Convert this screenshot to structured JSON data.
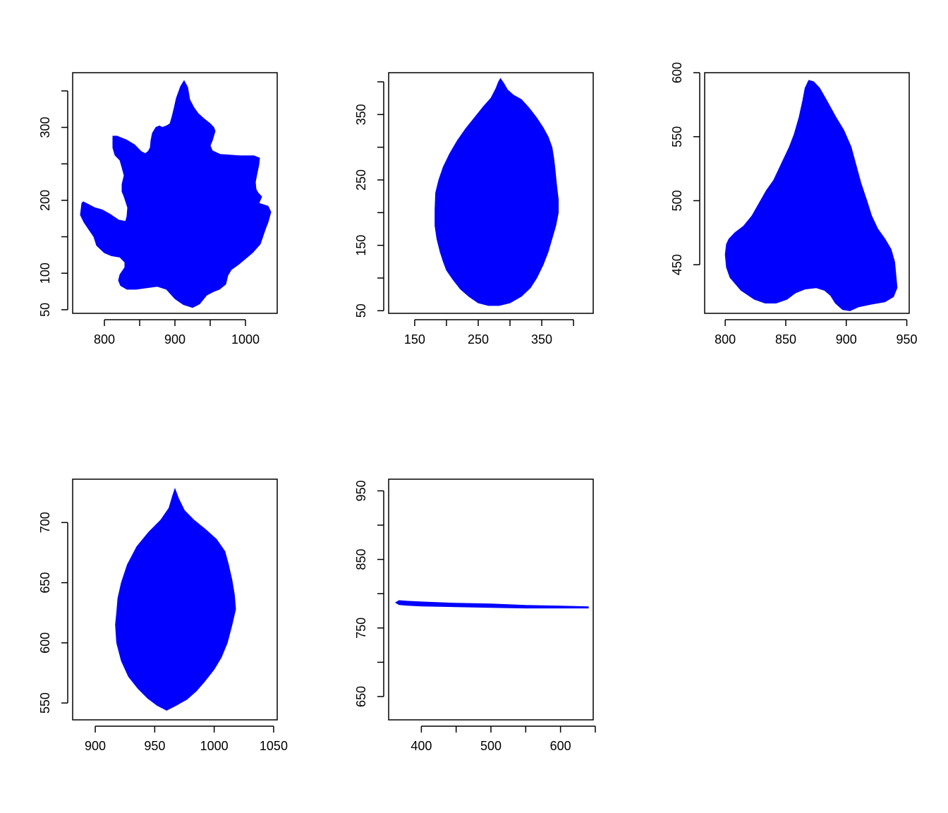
{
  "fill_color": "#0000FF",
  "chart_data": [
    {
      "type": "area",
      "shape": "polygon",
      "x_ticks": [
        800,
        900,
        1000
      ],
      "x_minor_ticks": [
        850,
        950
      ],
      "y_ticks": [
        50,
        100,
        200,
        300
      ],
      "y_minor_ticks": [
        150,
        250,
        350
      ],
      "xlim": [
        755,
        1045
      ],
      "ylim": [
        45,
        375
      ],
      "polygon": [
        [
          913,
          364
        ],
        [
          918,
          355
        ],
        [
          921,
          338
        ],
        [
          927,
          327
        ],
        [
          933,
          319
        ],
        [
          941,
          312
        ],
        [
          950,
          305
        ],
        [
          955,
          300
        ],
        [
          957,
          295
        ],
        [
          953,
          282
        ],
        [
          950,
          275
        ],
        [
          953,
          268
        ],
        [
          964,
          263
        ],
        [
          978,
          262
        ],
        [
          992,
          261
        ],
        [
          1012,
          261
        ],
        [
          1020,
          258
        ],
        [
          1019,
          249
        ],
        [
          1016,
          235
        ],
        [
          1014,
          225
        ],
        [
          1015,
          215
        ],
        [
          1018,
          210
        ],
        [
          1023,
          205
        ],
        [
          1019,
          196
        ],
        [
          1032,
          192
        ],
        [
          1036,
          184
        ],
        [
          1032,
          170
        ],
        [
          1028,
          160
        ],
        [
          1021,
          140
        ],
        [
          1010,
          128
        ],
        [
          1000,
          120
        ],
        [
          990,
          112
        ],
        [
          980,
          105
        ],
        [
          975,
          97
        ],
        [
          972,
          85
        ],
        [
          963,
          78
        ],
        [
          955,
          75
        ],
        [
          945,
          70
        ],
        [
          935,
          58
        ],
        [
          925,
          53
        ],
        [
          912,
          57
        ],
        [
          900,
          65
        ],
        [
          888,
          78
        ],
        [
          875,
          82
        ],
        [
          860,
          80
        ],
        [
          845,
          78
        ],
        [
          832,
          78
        ],
        [
          823,
          83
        ],
        [
          820,
          90
        ],
        [
          822,
          98
        ],
        [
          829,
          108
        ],
        [
          829,
          115
        ],
        [
          822,
          122
        ],
        [
          810,
          124
        ],
        [
          800,
          128
        ],
        [
          789,
          138
        ],
        [
          785,
          150
        ],
        [
          778,
          160
        ],
        [
          771,
          170
        ],
        [
          766,
          180
        ],
        [
          768,
          196
        ],
        [
          770,
          198
        ],
        [
          774,
          196
        ],
        [
          786,
          190
        ],
        [
          797,
          187
        ],
        [
          808,
          181
        ],
        [
          820,
          173
        ],
        [
          830,
          171
        ],
        [
          832,
          178
        ],
        [
          833,
          190
        ],
        [
          828,
          205
        ],
        [
          825,
          212
        ],
        [
          825,
          222
        ],
        [
          828,
          234
        ],
        [
          825,
          245
        ],
        [
          822,
          255
        ],
        [
          815,
          262
        ],
        [
          812,
          272
        ],
        [
          812,
          288
        ],
        [
          818,
          288
        ],
        [
          823,
          286
        ],
        [
          831,
          283
        ],
        [
          843,
          276
        ],
        [
          852,
          267
        ],
        [
          858,
          264
        ],
        [
          862,
          267
        ],
        [
          865,
          272
        ],
        [
          866,
          282
        ],
        [
          868,
          292
        ],
        [
          873,
          300
        ],
        [
          878,
          302
        ],
        [
          882,
          300
        ],
        [
          888,
          302
        ],
        [
          893,
          305
        ],
        [
          896,
          315
        ],
        [
          899,
          327
        ],
        [
          902,
          340
        ],
        [
          905,
          348
        ],
        [
          908,
          356
        ]
      ]
    },
    {
      "type": "area",
      "shape": "polygon",
      "x_ticks": [
        150,
        250,
        350
      ],
      "x_minor_ticks": [
        200,
        300,
        400
      ],
      "y_ticks": [
        50,
        150,
        250,
        350
      ],
      "y_minor_ticks": [
        100,
        200,
        300,
        400
      ],
      "xlim": [
        109,
        431
      ],
      "ylim": [
        46,
        414
      ],
      "polygon": [
        [
          285,
          405
        ],
        [
          290,
          398
        ],
        [
          296,
          388
        ],
        [
          305,
          380
        ],
        [
          318,
          373
        ],
        [
          330,
          360
        ],
        [
          342,
          345
        ],
        [
          352,
          330
        ],
        [
          360,
          316
        ],
        [
          366,
          300
        ],
        [
          369,
          282
        ],
        [
          371,
          265
        ],
        [
          373,
          245
        ],
        [
          376,
          220
        ],
        [
          376,
          200
        ],
        [
          372,
          180
        ],
        [
          366,
          160
        ],
        [
          360,
          140
        ],
        [
          352,
          120
        ],
        [
          342,
          100
        ],
        [
          332,
          85
        ],
        [
          318,
          72
        ],
        [
          300,
          62
        ],
        [
          283,
          58
        ],
        [
          266,
          58
        ],
        [
          250,
          62
        ],
        [
          235,
          72
        ],
        [
          222,
          83
        ],
        [
          210,
          98
        ],
        [
          200,
          112
        ],
        [
          195,
          125
        ],
        [
          190,
          140
        ],
        [
          185,
          160
        ],
        [
          182,
          180
        ],
        [
          182,
          205
        ],
        [
          183,
          230
        ],
        [
          188,
          250
        ],
        [
          195,
          270
        ],
        [
          205,
          290
        ],
        [
          217,
          310
        ],
        [
          230,
          328
        ],
        [
          244,
          345
        ],
        [
          258,
          362
        ],
        [
          270,
          375
        ],
        [
          278,
          390
        ],
        [
          282,
          400
        ]
      ]
    },
    {
      "type": "area",
      "shape": "polygon",
      "x_ticks": [
        800,
        850,
        900,
        950
      ],
      "x_minor_ticks": [],
      "y_ticks": [
        450,
        500,
        550,
        600
      ],
      "y_minor_ticks": [],
      "xlim": [
        783,
        952
      ],
      "ylim": [
        412,
        600
      ],
      "polygon": [
        [
          869,
          594
        ],
        [
          873,
          593
        ],
        [
          878,
          588
        ],
        [
          884,
          578
        ],
        [
          891,
          566
        ],
        [
          898,
          555
        ],
        [
          904,
          542
        ],
        [
          908,
          528
        ],
        [
          912,
          514
        ],
        [
          917,
          500
        ],
        [
          921,
          488
        ],
        [
          926,
          478
        ],
        [
          932,
          470
        ],
        [
          937,
          462
        ],
        [
          940,
          452
        ],
        [
          941,
          442
        ],
        [
          942,
          432
        ],
        [
          939,
          425
        ],
        [
          932,
          421
        ],
        [
          920,
          419
        ],
        [
          910,
          417
        ],
        [
          903,
          414
        ],
        [
          897,
          415
        ],
        [
          891,
          420
        ],
        [
          887,
          426
        ],
        [
          882,
          430
        ],
        [
          875,
          432
        ],
        [
          866,
          431
        ],
        [
          858,
          428
        ],
        [
          851,
          423
        ],
        [
          842,
          420
        ],
        [
          833,
          420
        ],
        [
          824,
          423
        ],
        [
          813,
          430
        ],
        [
          804,
          440
        ],
        [
          801,
          448
        ],
        [
          800,
          458
        ],
        [
          801,
          466
        ],
        [
          803,
          470
        ],
        [
          808,
          475
        ],
        [
          815,
          480
        ],
        [
          822,
          488
        ],
        [
          828,
          498
        ],
        [
          834,
          508
        ],
        [
          840,
          516
        ],
        [
          847,
          530
        ],
        [
          853,
          542
        ],
        [
          857,
          552
        ],
        [
          861,
          565
        ],
        [
          864,
          578
        ],
        [
          866,
          588
        ]
      ]
    },
    {
      "type": "area",
      "shape": "polygon",
      "x_ticks": [
        900,
        950,
        1000,
        1050
      ],
      "x_minor_ticks": [],
      "y_ticks": [
        550,
        600,
        650,
        700
      ],
      "y_minor_ticks": [],
      "xlim": [
        881,
        1053
      ],
      "ylim": [
        536,
        736
      ],
      "polygon": [
        [
          967,
          728
        ],
        [
          970,
          720
        ],
        [
          975,
          710
        ],
        [
          983,
          702
        ],
        [
          993,
          694
        ],
        [
          1002,
          686
        ],
        [
          1009,
          676
        ],
        [
          1012,
          665
        ],
        [
          1015,
          652
        ],
        [
          1017,
          640
        ],
        [
          1018,
          628
        ],
        [
          1015,
          615
        ],
        [
          1011,
          600
        ],
        [
          1006,
          588
        ],
        [
          1000,
          578
        ],
        [
          992,
          568
        ],
        [
          985,
          560
        ],
        [
          977,
          553
        ],
        [
          968,
          548
        ],
        [
          960,
          544
        ],
        [
          952,
          548
        ],
        [
          944,
          554
        ],
        [
          936,
          562
        ],
        [
          928,
          572
        ],
        [
          922,
          585
        ],
        [
          918,
          600
        ],
        [
          917,
          615
        ],
        [
          918,
          625
        ],
        [
          919,
          637
        ],
        [
          922,
          650
        ],
        [
          927,
          665
        ],
        [
          935,
          680
        ],
        [
          945,
          692
        ],
        [
          955,
          702
        ],
        [
          962,
          712
        ],
        [
          965,
          722
        ]
      ]
    },
    {
      "type": "area",
      "shape": "polygon",
      "x_ticks": [
        400,
        500,
        600
      ],
      "x_minor_ticks": [
        450,
        550,
        650
      ],
      "y_ticks": [
        650,
        750,
        850,
        950
      ],
      "y_minor_ticks": [
        700,
        800,
        900
      ],
      "xlim": [
        353,
        647
      ],
      "ylim": [
        616,
        967
      ],
      "polygon": [
        [
          368,
          790
        ],
        [
          380,
          789
        ],
        [
          400,
          788
        ],
        [
          450,
          786
        ],
        [
          500,
          785
        ],
        [
          550,
          783
        ],
        [
          600,
          782
        ],
        [
          640,
          781
        ],
        [
          640,
          779
        ],
        [
          600,
          779
        ],
        [
          550,
          779
        ],
        [
          500,
          780
        ],
        [
          450,
          781
        ],
        [
          400,
          782
        ],
        [
          380,
          783
        ],
        [
          368,
          784
        ],
        [
          363,
          787
        ]
      ]
    }
  ]
}
